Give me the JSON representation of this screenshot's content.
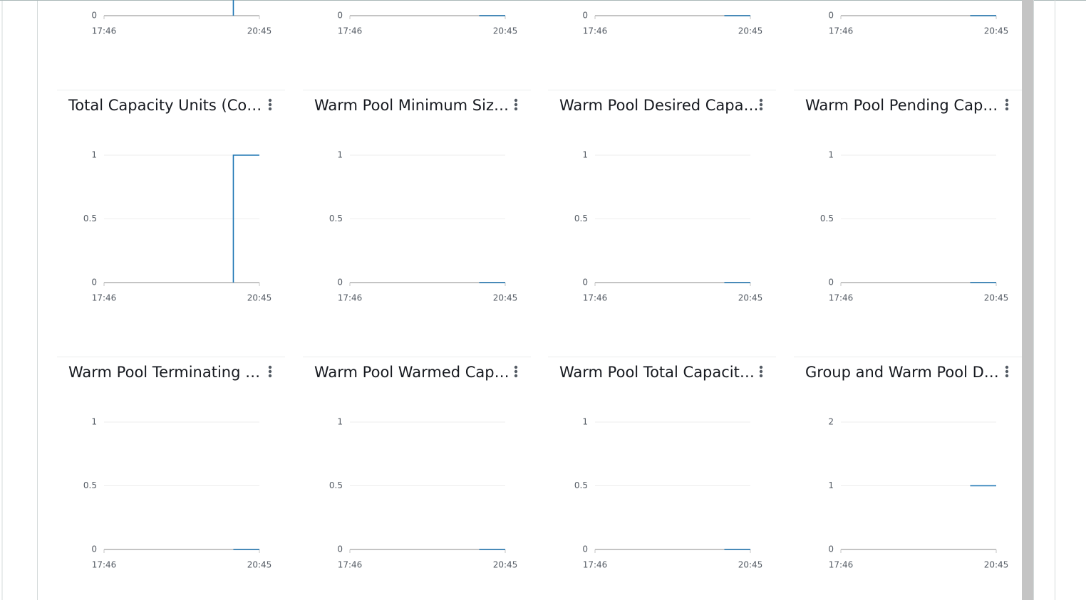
{
  "chart_data": [
    {
      "type": "line",
      "x": [
        "20:15",
        "20:15",
        "20:45"
      ],
      "values": [
        0,
        1,
        1
      ],
      "color": "#1f77b4",
      "xlim": [
        "17:46",
        "20:45"
      ],
      "xticks": [
        "17:46",
        "20:45"
      ],
      "ylim": [
        0,
        1
      ],
      "yticks": [
        0
      ]
    },
    {
      "type": "line",
      "x": [
        "20:15",
        "20:45"
      ],
      "values": [
        0,
        0
      ],
      "color": "#1f77b4",
      "xlim": [
        "17:46",
        "20:45"
      ],
      "xticks": [
        "17:46",
        "20:45"
      ],
      "ylim": [
        0,
        1
      ],
      "yticks": [
        0
      ]
    },
    {
      "type": "line",
      "x": [
        "20:15",
        "20:45"
      ],
      "values": [
        0,
        0
      ],
      "color": "#1f77b4",
      "xlim": [
        "17:46",
        "20:45"
      ],
      "xticks": [
        "17:46",
        "20:45"
      ],
      "ylim": [
        0,
        1
      ],
      "yticks": [
        0
      ]
    },
    {
      "type": "line",
      "x": [
        "20:15",
        "20:45"
      ],
      "values": [
        0,
        0
      ],
      "color": "#1f77b4",
      "xlim": [
        "17:46",
        "20:45"
      ],
      "xticks": [
        "17:46",
        "20:45"
      ],
      "ylim": [
        0,
        1
      ],
      "yticks": [
        0
      ]
    },
    {
      "type": "line",
      "title": "Total Capacity Units (Co…",
      "x": [
        "20:15",
        "20:15",
        "20:45"
      ],
      "values": [
        0,
        1,
        1
      ],
      "color": "#1f77b4",
      "xlim": [
        "17:46",
        "20:45"
      ],
      "xticks": [
        "17:46",
        "20:45"
      ],
      "ylim": [
        0,
        1
      ],
      "yticks": [
        0,
        0.5,
        1
      ]
    },
    {
      "type": "line",
      "title": "Warm Pool Minimum Siz…",
      "x": [
        "20:15",
        "20:45"
      ],
      "values": [
        0,
        0
      ],
      "color": "#1f77b4",
      "xlim": [
        "17:46",
        "20:45"
      ],
      "xticks": [
        "17:46",
        "20:45"
      ],
      "ylim": [
        0,
        1
      ],
      "yticks": [
        0,
        0.5,
        1
      ]
    },
    {
      "type": "line",
      "title": "Warm Pool Desired Capa…",
      "x": [
        "20:15",
        "20:45"
      ],
      "values": [
        0,
        0
      ],
      "color": "#1f77b4",
      "xlim": [
        "17:46",
        "20:45"
      ],
      "xticks": [
        "17:46",
        "20:45"
      ],
      "ylim": [
        0,
        1
      ],
      "yticks": [
        0,
        0.5,
        1
      ]
    },
    {
      "type": "line",
      "title": "Warm Pool Pending Cap…",
      "x": [
        "20:15",
        "20:45"
      ],
      "values": [
        0,
        0
      ],
      "color": "#1f77b4",
      "xlim": [
        "17:46",
        "20:45"
      ],
      "xticks": [
        "17:46",
        "20:45"
      ],
      "ylim": [
        0,
        1
      ],
      "yticks": [
        0,
        0.5,
        1
      ]
    },
    {
      "type": "line",
      "title": "Warm Pool Terminating …",
      "x": [
        "20:15",
        "20:45"
      ],
      "values": [
        0,
        0
      ],
      "color": "#1f77b4",
      "xlim": [
        "17:46",
        "20:45"
      ],
      "xticks": [
        "17:46",
        "20:45"
      ],
      "ylim": [
        0,
        1
      ],
      "yticks": [
        0,
        0.5,
        1
      ]
    },
    {
      "type": "line",
      "title": "Warm Pool Warmed Cap…",
      "x": [
        "20:15",
        "20:45"
      ],
      "values": [
        0,
        0
      ],
      "color": "#1f77b4",
      "xlim": [
        "17:46",
        "20:45"
      ],
      "xticks": [
        "17:46",
        "20:45"
      ],
      "ylim": [
        0,
        1
      ],
      "yticks": [
        0,
        0.5,
        1
      ]
    },
    {
      "type": "line",
      "title": "Warm Pool Total Capacit…",
      "x": [
        "20:15",
        "20:45"
      ],
      "values": [
        0,
        0
      ],
      "color": "#1f77b4",
      "xlim": [
        "17:46",
        "20:45"
      ],
      "xticks": [
        "17:46",
        "20:45"
      ],
      "ylim": [
        0,
        1
      ],
      "yticks": [
        0,
        0.5,
        1
      ]
    },
    {
      "type": "line",
      "title": "Group and Warm Pool D…",
      "x": [
        "20:15",
        "20:45"
      ],
      "values": [
        1,
        1
      ],
      "color": "#1f77b4",
      "xlim": [
        "17:46",
        "20:45"
      ],
      "xticks": [
        "17:46",
        "20:45"
      ],
      "ylim": [
        0,
        2
      ],
      "yticks": [
        0,
        1,
        2
      ]
    }
  ]
}
